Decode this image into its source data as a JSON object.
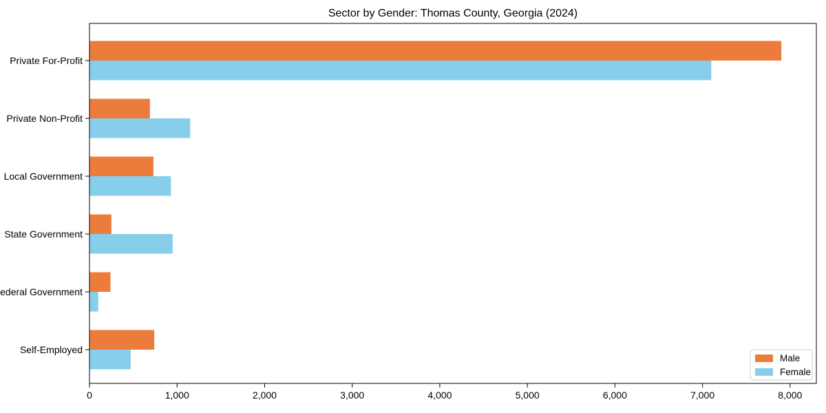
{
  "title": "Sector by Gender: Thomas County, Georgia (2024)",
  "colors": {
    "male_bar": "#ec7c3b",
    "female_bar": "#87ceeb",
    "axis": "#000000",
    "legend_border": "#cccccc",
    "background": "#ffffff"
  },
  "legend": {
    "position": "lower right",
    "items": [
      {
        "label": "Male",
        "color": "#ec7c3b"
      },
      {
        "label": "Female",
        "color": "#87ceeb"
      }
    ]
  },
  "chart_data": {
    "type": "bar",
    "orientation": "horizontal",
    "title": "Sector by Gender: Thomas County, Georgia (2024)",
    "categories": [
      "Private For-Profit",
      "Private Non-Profit",
      "Local Government",
      "State Government",
      "Federal Government",
      "Self-Employed"
    ],
    "series": [
      {
        "name": "Male",
        "color": "#ec7c3b",
        "values": [
          7900,
          690,
          730,
          250,
          240,
          740
        ]
      },
      {
        "name": "Female",
        "color": "#87ceeb",
        "values": [
          7100,
          1150,
          930,
          950,
          100,
          470
        ]
      }
    ],
    "xlabel": "",
    "ylabel": "",
    "xlim": [
      0,
      8300
    ],
    "xticks": [
      0,
      1000,
      2000,
      3000,
      4000,
      5000,
      6000,
      7000,
      8000
    ],
    "xtick_labels": [
      "0",
      "1,000",
      "2,000",
      "3,000",
      "4,000",
      "5,000",
      "6,000",
      "7,000",
      "8,000"
    ],
    "grid": false,
    "legend_position": "lower right"
  }
}
